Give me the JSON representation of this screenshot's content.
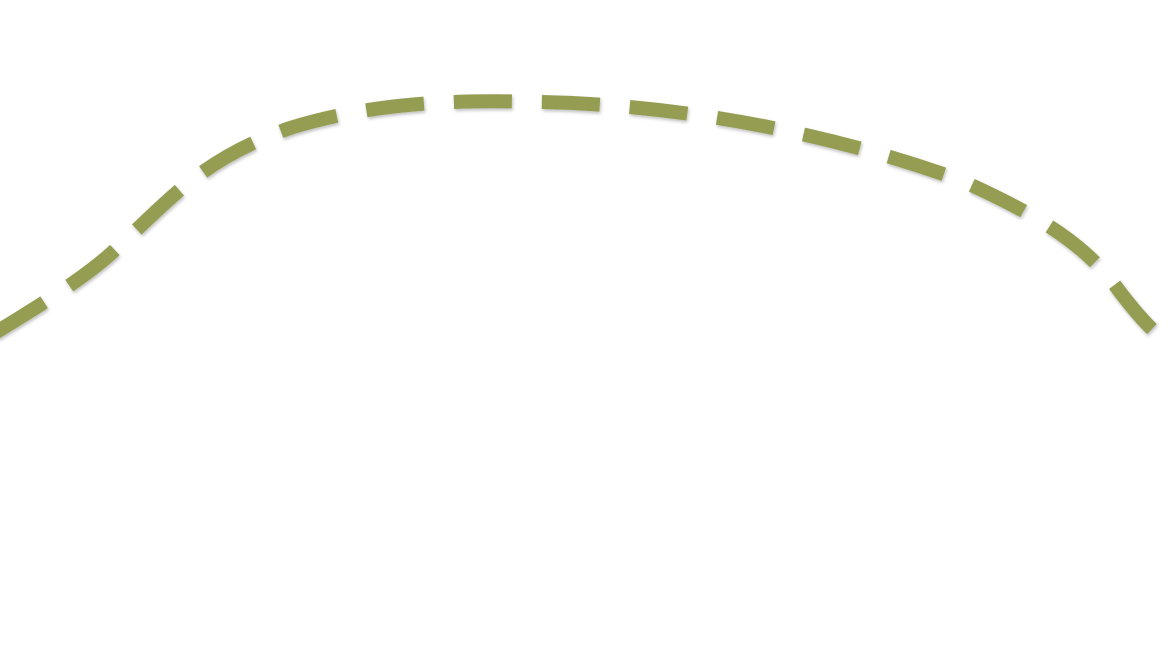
{
  "background_color": "#ffffff",
  "curve": {
    "shape": "dashed-arc",
    "stroke_color": "#959d52",
    "style": "dashed"
  }
}
